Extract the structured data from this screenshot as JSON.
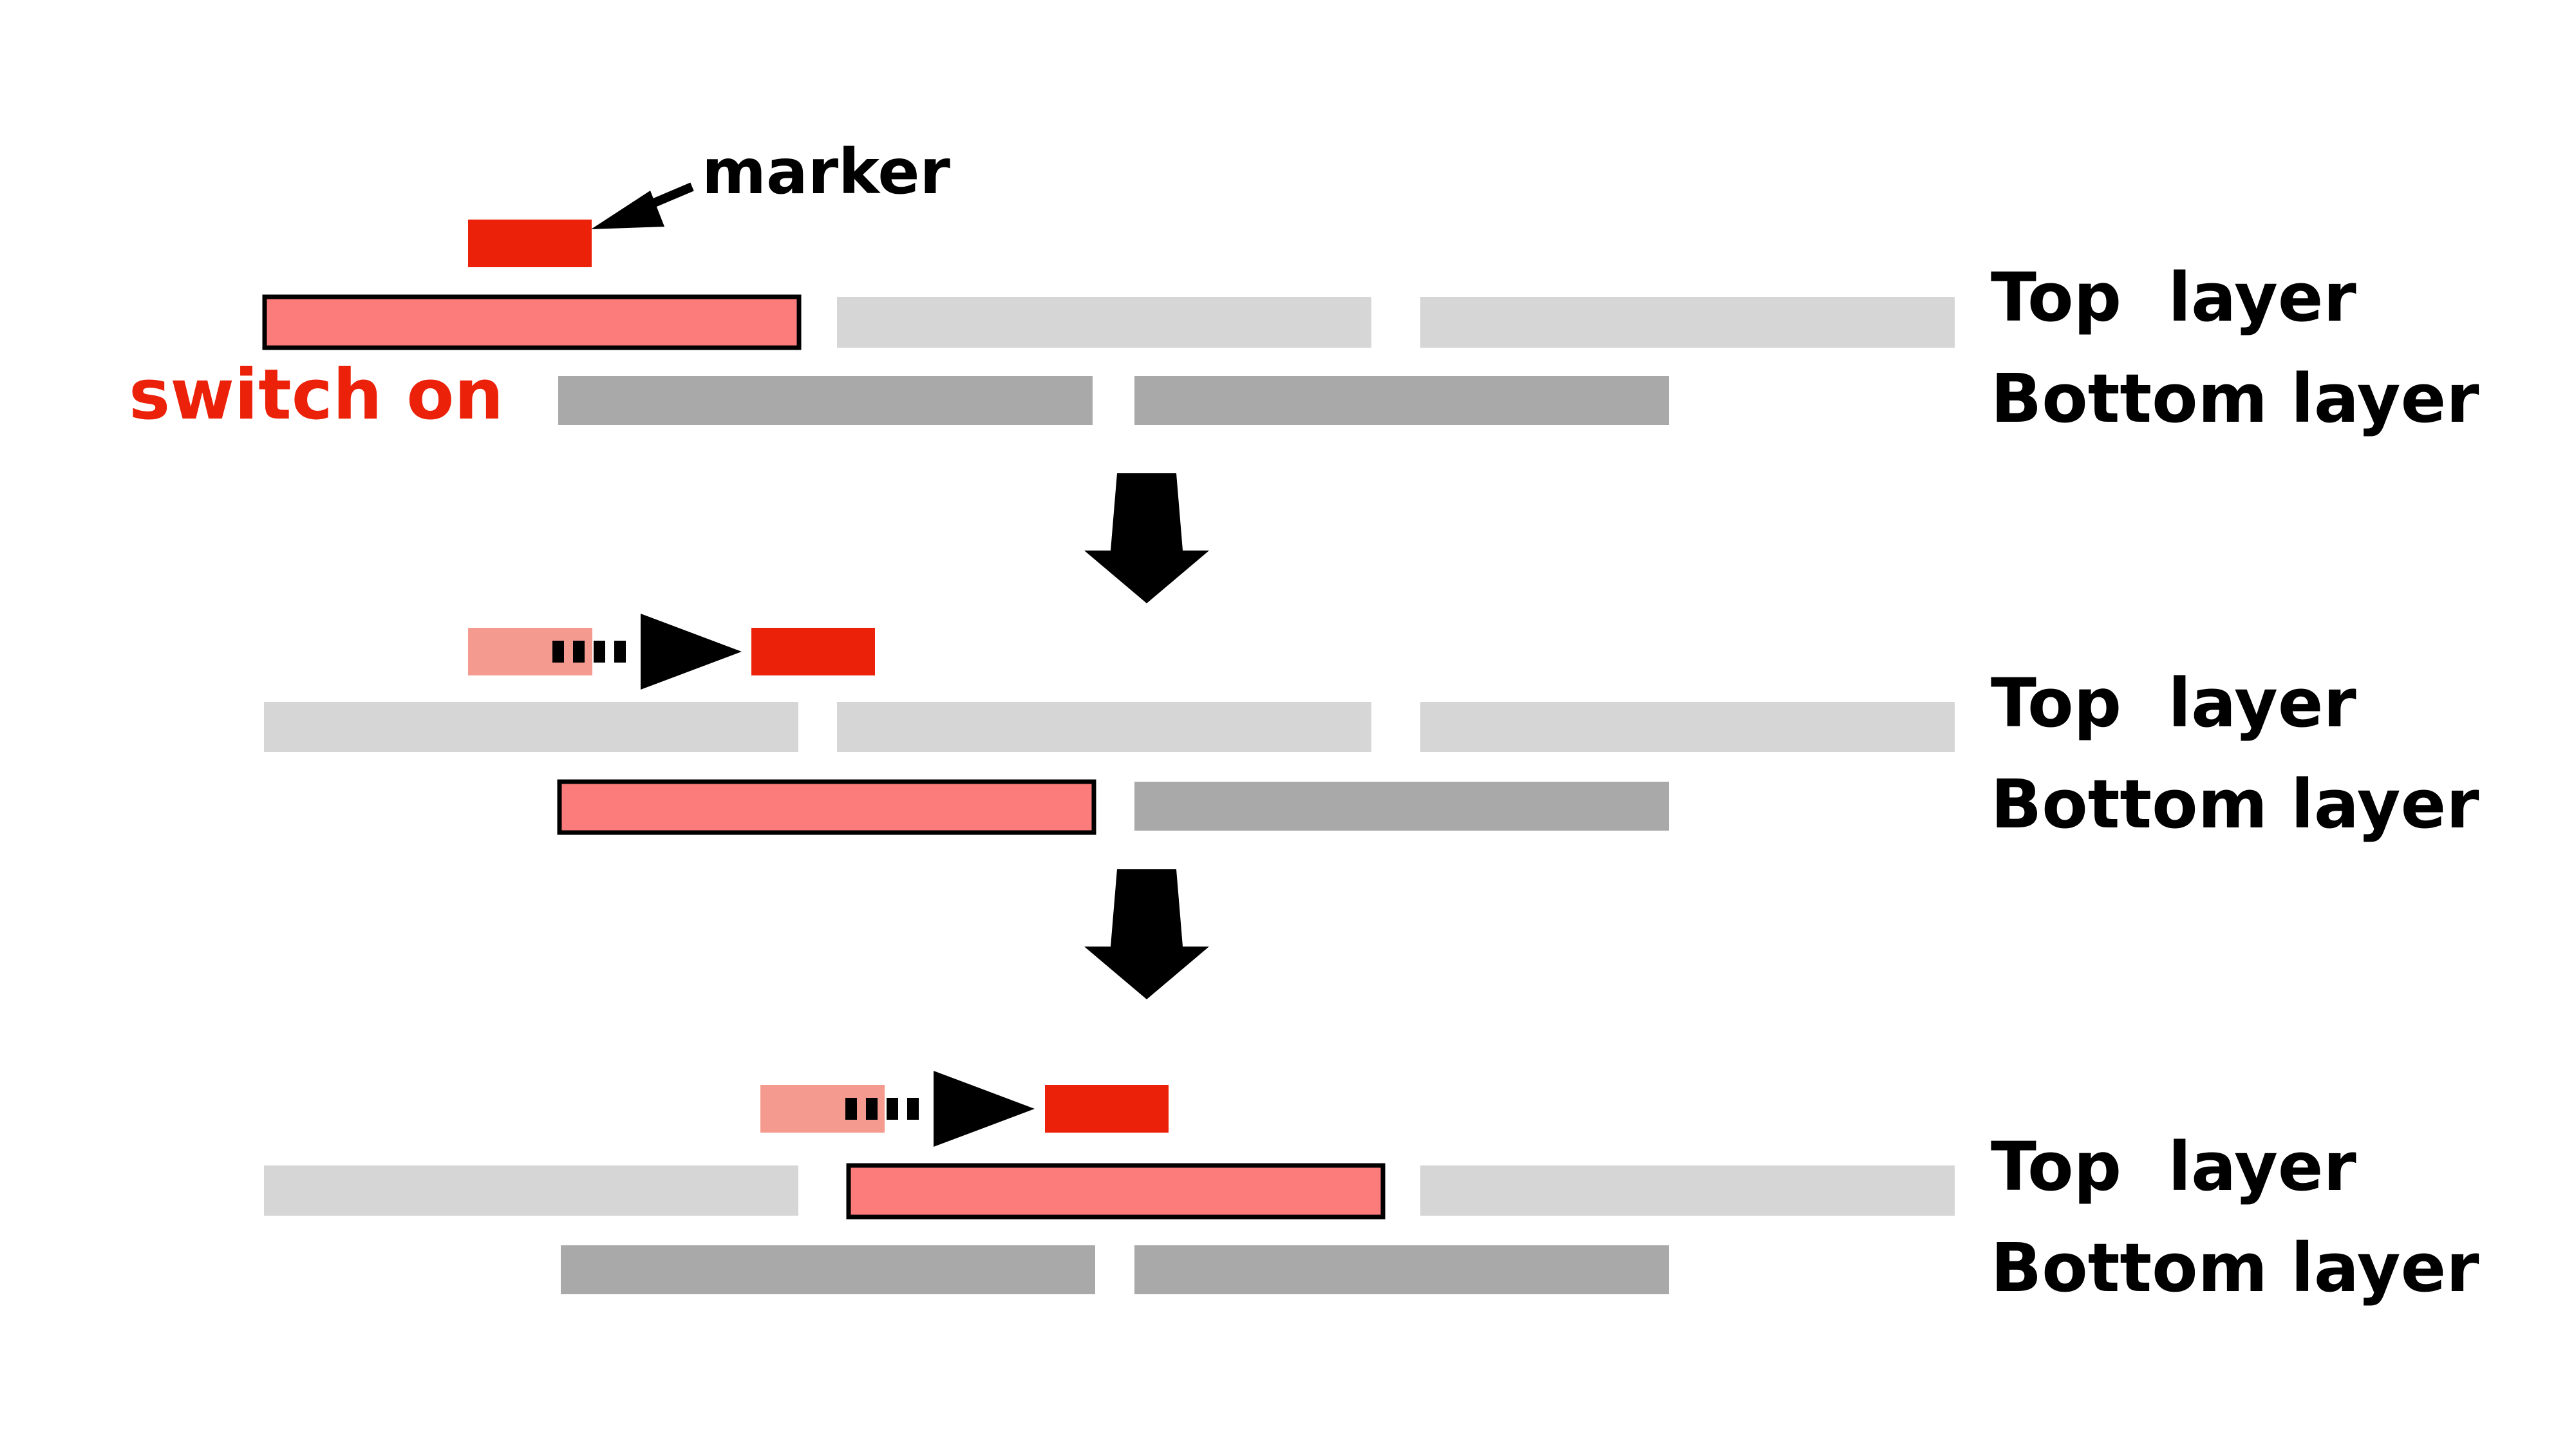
{
  "labels": {
    "marker": "marker",
    "switch_on": "switch on",
    "top_layer": "Top  layer",
    "bottom_layer": "Bottom layer"
  },
  "stages": [
    {
      "top_layer_label": "Top  layer",
      "bottom_layer_label": "Bottom layer",
      "active_layer": "top",
      "active_segment": 1
    },
    {
      "top_layer_label": "Top  layer",
      "bottom_layer_label": "Bottom layer",
      "active_layer": "bottom",
      "active_segment": 1
    },
    {
      "top_layer_label": "Top  layer",
      "bottom_layer_label": "Bottom layer",
      "active_layer": "top",
      "active_segment": 2
    }
  ],
  "colors": {
    "top_segment": "#d6d6d6",
    "bottom_segment": "#a9a9a9",
    "active_segment": "#fc7b7b",
    "marker": "#ec2109",
    "marker_faded": "#f59a8e",
    "switch_on_text": "#ec2109",
    "arrow": "#000000"
  }
}
